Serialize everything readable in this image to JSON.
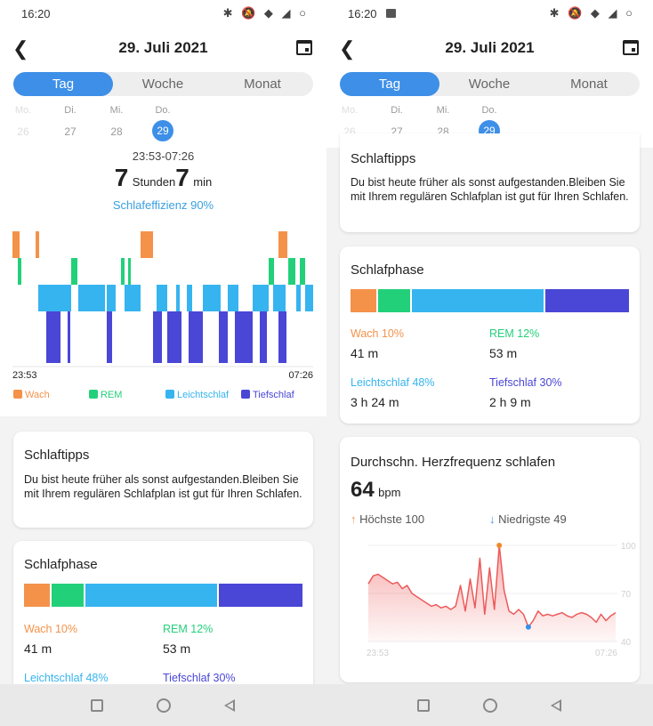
{
  "status": {
    "time": "16:20",
    "icons": "✱ 🔕 ◆ ◢ ○"
  },
  "header": {
    "title": "29. Juli 2021"
  },
  "tabs": [
    "Tag",
    "Woche",
    "Monat"
  ],
  "days": [
    {
      "name": "Mo.",
      "date": "26"
    },
    {
      "name": "Di.",
      "date": "27"
    },
    {
      "name": "Mi.",
      "date": "28"
    },
    {
      "name": "Do.",
      "date": "29"
    }
  ],
  "overview": {
    "time_range": "23:53-07:26",
    "hours": "7",
    "hours_unit": "Stunden",
    "minutes": "7",
    "minutes_unit": "min",
    "efficiency": "Schlafeffizienz 90%",
    "start": "23:53",
    "end": "07:26",
    "legend": [
      "Wach",
      "REM",
      "Leichtschlaf",
      "Tiefschlaf"
    ]
  },
  "tips": {
    "title": "Schlaftipps",
    "text": "Du bist heute früher als sonst aufgestanden.Bleiben Sie mit Ihrem regulären Schlafplan ist gut für Ihren Schlafen."
  },
  "phase": {
    "title": "Schlafphase",
    "items": [
      {
        "label": "Wach 10%",
        "value": "41 m",
        "pct": 10
      },
      {
        "label": "REM 12%",
        "value": "53 m",
        "pct": 12
      },
      {
        "label": "Leichtschlaf 48%",
        "value": "3 h 24 m",
        "pct": 48
      },
      {
        "label": "Tiefschlaf 30%",
        "value": "2 h 9 m",
        "pct": 30
      }
    ]
  },
  "heart": {
    "title": "Durchschn. Herzfrequenz schlafen",
    "value": "64",
    "unit": "bpm",
    "max_label": "Höchste 100",
    "min_label": "Niedrigste 49",
    "y_ticks": [
      "100",
      "70",
      "40"
    ],
    "x_start": "23:53",
    "x_end": "07:26"
  },
  "colors": {
    "wach": "#f4924a",
    "rem": "#23d07a",
    "leicht": "#36b4f0",
    "tief": "#4a46d6",
    "accent": "#3d8fe8"
  },
  "chart_data": [
    {
      "type": "bar",
      "title": "",
      "categories": [
        "Wach",
        "REM",
        "Leichtschlaf",
        "Tiefschlaf"
      ],
      "values": [
        10,
        12,
        48,
        30
      ],
      "xlabel": "",
      "ylabel": ""
    },
    {
      "type": "area",
      "title": "",
      "xlabel": "",
      "ylabel": "",
      "x_range": [
        "23:53",
        "07:26"
      ],
      "ylim": [
        40,
        100
      ],
      "y_ticks": [
        100,
        70,
        40
      ],
      "series": [
        {
          "values": [
            76,
            81,
            82,
            80,
            78,
            76,
            77,
            73,
            75,
            70,
            68,
            66,
            64,
            62,
            63,
            61,
            62,
            60,
            62,
            75,
            59,
            79,
            61,
            92,
            57,
            86,
            60,
            100,
            72,
            59,
            57,
            60,
            57,
            49,
            53,
            59,
            56,
            57,
            56,
            57,
            58,
            56,
            55,
            57,
            58,
            57,
            55,
            52,
            57,
            53,
            56,
            58
          ]
        }
      ],
      "max": 100,
      "min": 49
    }
  ]
}
